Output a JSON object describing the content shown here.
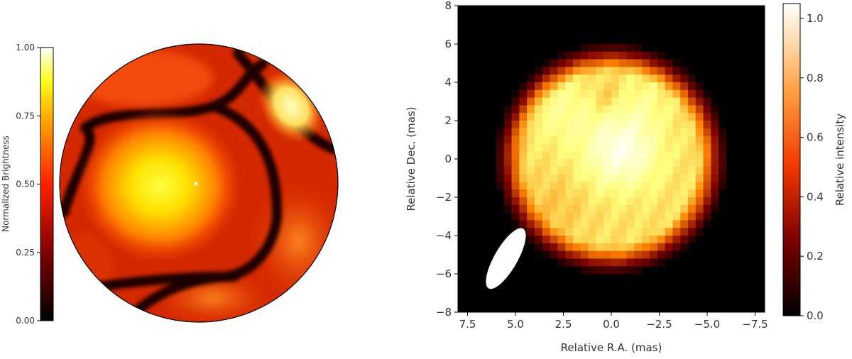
{
  "chart_data": [
    {
      "type": "heatmap",
      "panel": "left",
      "description_values": {
        "colorbar_label": "Normalized Brightness",
        "colorbar_ticks": [
          "0.00",
          "0.25",
          "0.50",
          "0.75",
          "1.00"
        ],
        "colorbar_range": [
          0,
          1
        ],
        "colormap": "afmhot"
      }
    },
    {
      "type": "heatmap",
      "panel": "right",
      "xlabel": "Relative R.A. (mas)",
      "ylabel": "Relative Dec. (mas)",
      "xlim": [
        8,
        -8
      ],
      "ylim": [
        -8,
        8
      ],
      "xticks": [
        "7.5",
        "5.0",
        "2.5",
        "0.0",
        "−2.5",
        "−5.0",
        "−7.5"
      ],
      "yticks": [
        "−8",
        "−6",
        "−4",
        "−2",
        "0",
        "2",
        "4",
        "6",
        "8"
      ],
      "colorbar_label": "Relative intensity",
      "colorbar_ticks": [
        "0.0",
        "0.2",
        "0.4",
        "0.6",
        "0.8",
        "1.0"
      ],
      "colorbar_range": [
        0,
        1.05
      ],
      "disk_radius_mas": 5.1,
      "beam": {
        "x": 5.5,
        "y": -5.2,
        "major": 1.8,
        "minor": 0.6,
        "pa_deg": 30
      }
    }
  ],
  "colors": {
    "background_plot": "#000000",
    "axes": "#000000",
    "text": "#333333"
  }
}
